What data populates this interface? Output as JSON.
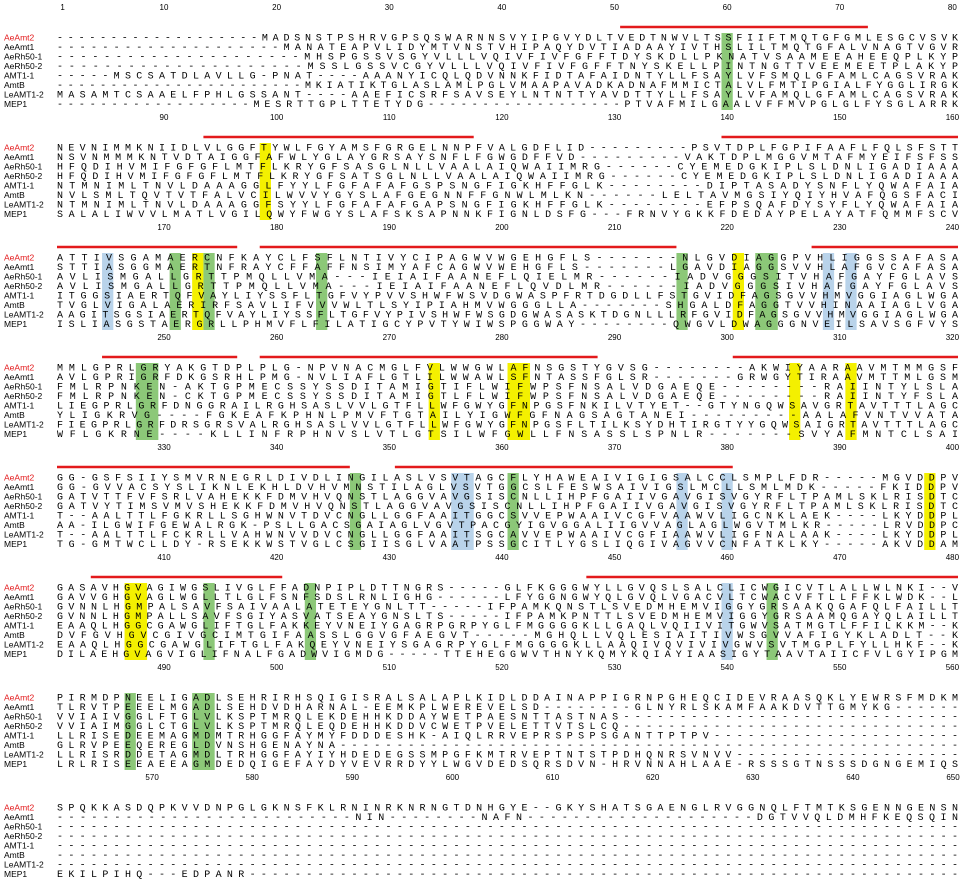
{
  "blocks": [
    {
      "ruler": [
        1,
        10,
        20,
        30,
        40,
        50,
        60,
        70,
        80
      ],
      "rows": [
        {
          "name": "AeAmt2",
          "seq": "-------------------MADSNSTPSHRVGPSQSWARNNSVYIPGVYDLTVEDTNWVLTSSFIIFTMQTGFGMLESGCVSVK"
        },
        {
          "name": "AeAmt1",
          "seq": "--------------------MANATEAPVLIDYMTVNSTVHIPAQYDVTIADAAYIVTHSLILTMQTGFALVNAGTVGVR"
        },
        {
          "name": "AeRh50-1",
          "seq": "---------------------MHSPGSSVSGYVLLLVQIVFIVFGFFTDYSKDLLPKNATVSAAMEEAHEEQPLKYP"
        },
        {
          "name": "AeRh50-2",
          "seq": "---------------------MSSLGSSVCGYVLLLVQIVFIVFGFFTNYSKELLPINTNGTTVEEMEETPLAKYP"
        },
        {
          "name": "AMT1-1",
          "seq": "-----MSCSATDLAVLLG-PNAT----AAANYICQLQDVNNKFIDTAFAIDNTYLLFSAYLVFSMQLGFAMLCAGSVRAK"
        },
        {
          "name": "AmtB",
          "seq": "-----------------------MKIATIKTGLASLAMLPGLVMAAPAVADKADNAFMMICTALVLFMTIPGIALFYGGLIRGK"
        },
        {
          "name": "LeAMT1-2",
          "seq": "MASAMTCSAAELFPHLGSSANT----AAEFICSRFSAVSEYLNTNTTYAVDTTYLLFSAYLVFAMQLGFAMLCAGSVRAK"
        },
        {
          "name": "MEP1",
          "seq": "------------------MESRTTGPLTTETYDG------------------PTVAFMILGAALVFFMVPGLGLFYSGLARRK"
        }
      ]
    },
    {
      "ruler": [
        90,
        100,
        110,
        120,
        130,
        140,
        150,
        160
      ],
      "rows": [
        {
          "name": "AeAmt2",
          "seq": "NEVNIMMKNIIDLVLGGFTYWLFGYAMSFGRGELNNPFVALGDFLID---------PSVTDPLFGPIFAAFLFQLSFSTT"
        },
        {
          "name": "AeAmt1",
          "seq": "NSVNMMMKNTVDTAIGGFAFWLYGLAYGRSAYSNFLFGWGDFFVD---------VAKTDPLMGGVMTAFMYEIFSFSS"
        },
        {
          "name": "AeRh50-1",
          "seq": "HFQDIHVMIFGFGFLMTFLKRYGFSASGLNLLVAALAIQWAIIMRG------CYEMEDGKIPLSLDNLIGADIAAA"
        },
        {
          "name": "AeRh50-2",
          "seq": "HFQDIHVMIFGFGFLMTFLKRYGFSATSGLNLLVAALAIQWAIIMRG------CYEMEDGKIPLSLDNLIGADIAAA"
        },
        {
          "name": "AMT1-1",
          "seq": "NTMNIMLTNVLDAAAGGLFYYLFGFAFAFGSPSNGFIGKHFFGLK--------DIPTASADYSNFLYQWAFAIA"
        },
        {
          "name": "AmtB",
          "seq": "NVLSMLTQVTVTFALVCILWVVYGYSLAFGEGNNFFGNWLMLKN------LELTAVMGSIYQIYHVAFQGSFACI"
        },
        {
          "name": "LeAMT1-2",
          "seq": "NTMNIMLTNVLDAAAGGFSYYLFGFAFAFGAPSNGFIGKHFFGLK--------EFPSQAFDYSYFLYQWAFAIA"
        },
        {
          "name": "MEP1",
          "seq": "SALALIWVVLMATLVGILQWYFWGYSLAFSKSAPNNKFIGNLDSFG---FRNVYGKKFDEDAYPELAYATFQMMFSCV"
        }
      ]
    },
    {
      "ruler": [
        170,
        180,
        190,
        200,
        210,
        220,
        230,
        240
      ],
      "rows": [
        {
          "name": "AeAmt2",
          "seq": "ATTIVSGAMAERCNFKAYCLFSFLNTIVYCIPAGWVWGEHGFLS-------NLGVDIAGGPVHLIGGSSAFASA"
        },
        {
          "name": "AeAmt1",
          "seq": "STTIASGGMAERTNFRAYCFFAFFNSIMYAFCAGWVWEHGFLS-------LGAVDIAGGSVVHLAFGVCAFASA"
        },
        {
          "name": "AeRh50-1",
          "seq": "AVLISMGALLGRTTPMQLLVMA---IEIAIFAANEFLQIELMR------IADVGGGSITVHAFGAYFGLAVS"
        },
        {
          "name": "AeRh50-2",
          "seq": "AVLISMGALLGRTTPMQLLVMA---IEIAIFAANEFLQVDLMR------IADVGGGSIVHAFGAYFGLAVS"
        },
        {
          "name": "AMT1-1",
          "seq": "ITGGSIAERTQFVAYLIYSSFLTGFVYPVVSHWFWSVDGWASPFRTDGDLLFSTGVIDFAGSGVVHMVGGIAGLWGA"
        },
        {
          "name": "AmtB",
          "seq": "TVGLVIGALAERIRFSAVLIFVVVWLTLSYIPIAHMVWGGGLLA-------SHGALDFAGGTVVHINAAIAGLVGA"
        },
        {
          "name": "LeAMT1-2",
          "seq": "AAGITSGSIAERTQFVAYLIYSSFLTGFVYPIVSHWFWSGDGWASASKTDGNLLLRFGVIDFAGSGVVHMVGGIAGLWGA"
        },
        {
          "name": "MEP1",
          "seq": "ISLIASGSTAERGRLLPHMVFLFILATIGCYPVTYWIWSPGGWAY--------QWGVLDWAGGGNVEILSAVSGFVYS"
        }
      ]
    },
    {
      "ruler": [
        250,
        260,
        270,
        280,
        290,
        300,
        310,
        320
      ],
      "rows": [
        {
          "name": "AeAmt2",
          "seq": "MMLGPRLGRYAKGTDPLPLG-NPVNACMGLFVLWWGWLAFNSGSTYGVSG--------AKWIYAARAAVMTMMGSF"
        },
        {
          "name": "AeAmt1",
          "seq": "AVLGPRIGRFDKGSRHLPMG-NVLIAFLGTLILWWAWLSFNTASSFGLSR-------GRWGYTIRAAVMTTMLGSM"
        },
        {
          "name": "AeRh50-1",
          "seq": "FMLRPNKEN-AKTGPMECSSYSSDITAMIGTIFLWIFWPSFNSALVDGAEQE--------RAIINTYLSLA"
        },
        {
          "name": "AeRh50-2",
          "seq": "FMLRPNKEN-CKTGPMECSSYSSDITAMIGTLFLWIFWPSFNSALVDGAEQE--------RAIINTYFSLA"
        },
        {
          "name": "AMT1-1",
          "seq": "LIEGPRLGRFDNGGRAILRGHSASLVVLGTFLLWFGWYGFNPGSFNKILVTYET--GTYNGQWSAVGRTAVTTTLAGC"
        },
        {
          "name": "AmtB",
          "seq": "YLIGKRVG----FGKEAFKPHNLPMVFTGTAILYIGWFGFNAGSAGTANEI---------AALAFVNTVVATA"
        },
        {
          "name": "LeAMT1-2",
          "seq": "FIEGPRLGRFDRSGRSVALRGHSASLVVLGTFLLWFGWYGFNPGSFLTILKSYDHTIRGTYYGQWSAIGRTAVTTTLAGC"
        },
        {
          "name": "MEP1",
          "seq": "WFLGKRNE----KLLINFRPHNVSLVTLGTSILWFGWLLFNSASSLSPNLR-------SVYAFMNTCLSAI"
        }
      ]
    },
    {
      "ruler": [
        330,
        340,
        350,
        360,
        370,
        380,
        390,
        400
      ],
      "rows": [
        {
          "name": "AeAmt2",
          "seq": "GG-GSFSIIYSMVRNEGRLDIVDLINGILASLVSVTAGCFLYHAWEAIVIGIGSALCCLSMPLFDR-----MGVDDPV"
        },
        {
          "name": "AeAmt1",
          "seq": "GG-GVVACSYSLIKNLEKHLDVHVMNSTILAGLVSVTGGCSLFESWSAIVIGSLMCLLSMLMDK-----FKIDDPV"
        },
        {
          "name": "AeRh50-1",
          "seq": "GATVTTFVFSRLVAHEKKFDMVHVQNSTLAGGVAVGSISCNLLIHPFGAIIVGAVGISVGYRFLTPAMLSKLRISDTC"
        },
        {
          "name": "AeRh50-2",
          "seq": "GATVYTIMSVMVSHEKKFDMVHVQNSTLAGGVAVGSISCNLLIHPFGAIIVGAVGISVGYRFLTPAMLSKLRISDTC"
        },
        {
          "name": "AMT1-1",
          "seq": "T--AALTTLFGKRLLSGHWNVTDVCNGLLGGFAAITGGCSVVEPWAAIVCGFVAAWVLIGCNKLAEK----LKYDDPL"
        },
        {
          "name": "AmtB",
          "seq": "AA-ILGWIFGEWALRGK-PSLLGACSGAIAGLVGVTPACGYIGVGGALIIGVVAGLAGLWGVTMLKR-----LRVDDPC"
        },
        {
          "name": "LeAMT1-2",
          "seq": "T--AALTTLFCKRLLVAHWNVVDVCNGLLGGFAAITSGCAVVEPWAAIVCGFIAAWVLIGFNALAAK----LKYDDPL"
        },
        {
          "name": "MEP1",
          "seq": "TG-GMTWCLLDY-RSEKKWSTVGLCSGIISGLVAATPSSGCITLYGSLIQGIVAGVVCNFATKLKY-----AKVDDAM"
        }
      ]
    },
    {
      "ruler": [
        410,
        420,
        430,
        440,
        450,
        460,
        470,
        480
      ],
      "rows": [
        {
          "name": "AeAmt2",
          "seq": "GASAVHGVAGIWGSLIVGLFFADNPIPLDTTNGRS-----GLFKGGGWYLLGVQSLSALCLICWGICVTLALLWLNKI--V"
        },
        {
          "name": "AeAmt1",
          "seq": "GAVVGHGVAGLWGLLTLGLFSNFSDSLRNLIGHG------LFYGGNGWYQLGVQLVGACVLTCWACVFTLLFFKLWDK--L"
        },
        {
          "name": "AeRh50-1",
          "seq": "GVNNLHGMPALSAVFSAIVAALATETEYGNLTT-----IFPAMKQNSTLSVEDMHEMVIGGYGRSAAKQGAFQLFAILLT"
        },
        {
          "name": "AeRh50-2",
          "seq": "GVNNLHGMPALLSAVFSGIYASVATSEAYGNSLTS-----IFPAMKPNTTLSVEDMHEMVIGGYGRSAAMQGAYQLAILLT"
        },
        {
          "name": "AMT1-1",
          "seq": "EAAQLHGGCGAWGLIFTGLFAKKEYVNEIYGAGRPGRPYGLFMGGGGKLLGAQLVQIIVITGWVSATMGTLFFILKKM--K"
        },
        {
          "name": "AmtB",
          "seq": "DVFGVHGVCGIVGCIMTGIFAASSLGGVGFAEGVT-----MGHQLLVQLESIAITIVWSGVVAFIGYKLADLT--K"
        },
        {
          "name": "LeAMT1-2",
          "seq": "EAAQLHGGCGAWGLIFTGLFAKQEYVNEIYSGAGRPYGLFMGGGGKLLAAQIVQVIVIVGWVSVTMGPLFYLLHKF--K"
        },
        {
          "name": "MEP1",
          "seq": "DILAEHGVAGVIGLIFNALFGADWVIGMDG-----TTEHEGGWVTHNYKQMYKQIAYIAASIGYTAAVTAIICFVLGYIPGM"
        }
      ]
    },
    {
      "ruler": [
        490,
        500,
        510,
        520,
        530,
        540,
        550,
        560
      ],
      "rows": [
        {
          "name": "AeAmt2",
          "seq": "PIRMDPNEELIGADLSEHRIRHSQIGISRALSALAPLKIDLDDAINAPPIGRNPGHEQCIDEVRAASQKLYEWRSFMDKM"
        },
        {
          "name": "AeAmt1",
          "seq": "TLRVTPEEELMGADLSEHDVDHARNAL-EEMKPLWEREVELSD--------GLNYRLSKAMFAAKDVTTGMYKG------"
        },
        {
          "name": "AeRh50-1",
          "seq": "VVIAIVGGLFTGLVLKSPTMRQLEKDEHHKDDAYWETPAESNTTASTNAS------------------------------"
        },
        {
          "name": "AeRh50-2",
          "seq": "VVIAIMGGLCTGLVLKSPTMRQLEQDEHHKDDVCWETPVELETTVTSLCQ------------------------------"
        },
        {
          "name": "AMT1-1",
          "seq": "LLRISEDEEMAGMDMTRHGGFAYMYFDDDESHK-AIQLRRVEPRSPSPSGANTTPTPV----------------------"
        },
        {
          "name": "AmtB",
          "seq": "GLRVPEEQEREGLDVNSHGENAYNA-------------------------------------------------------"
        },
        {
          "name": "LeAMT1-2",
          "seq": "LLRISRDDETAGMDLTRHGGFAYIYHDEDEGSSMPGFKMTRVEPTNTSTPDHQNRSVNVV--------------------"
        },
        {
          "name": "MEP1",
          "seq": "LRLRISEEAEEAGMDEDQIGEFAYDYVEVRRDYYLWGVDEDSQRSDVN-HRVNNAHLAAE-RSSSGTNSSSDGNGEMIQS"
        }
      ]
    },
    {
      "ruler": [
        570,
        580,
        590,
        600,
        610,
        620,
        630,
        640,
        650
      ],
      "rows": [
        {
          "name": "AeAmt2",
          "seq": "SPQKKASDQPKVVDNPGLGKNSFKLRNINRKNRNGTDNHGYE--GKYSHATSGAENGLRVGGNQLFTMTKSGENNGENSN"
        },
        {
          "name": "AeAmt1",
          "seq": "--------------------------NIN--------NAFN--------------------DGTVVQLDMHFKEQSQIN"
        },
        {
          "name": "AeRh50-1",
          "seq": "--------------------------------------------------------------------------------"
        },
        {
          "name": "AeRh50-2",
          "seq": "--------------------------------------------------------------------------------"
        },
        {
          "name": "AMT1-1",
          "seq": "--------------------------------------------------------------------------------"
        },
        {
          "name": "AmtB",
          "seq": "--------------------------------------------------------------------------------"
        },
        {
          "name": "LeAMT1-2",
          "seq": "--------------------------------------------------------------------------------"
        },
        {
          "name": "MEP1",
          "seq": "EKILPIHQ---EDPANR---------------------------------------------------------------"
        }
      ]
    }
  ]
}
